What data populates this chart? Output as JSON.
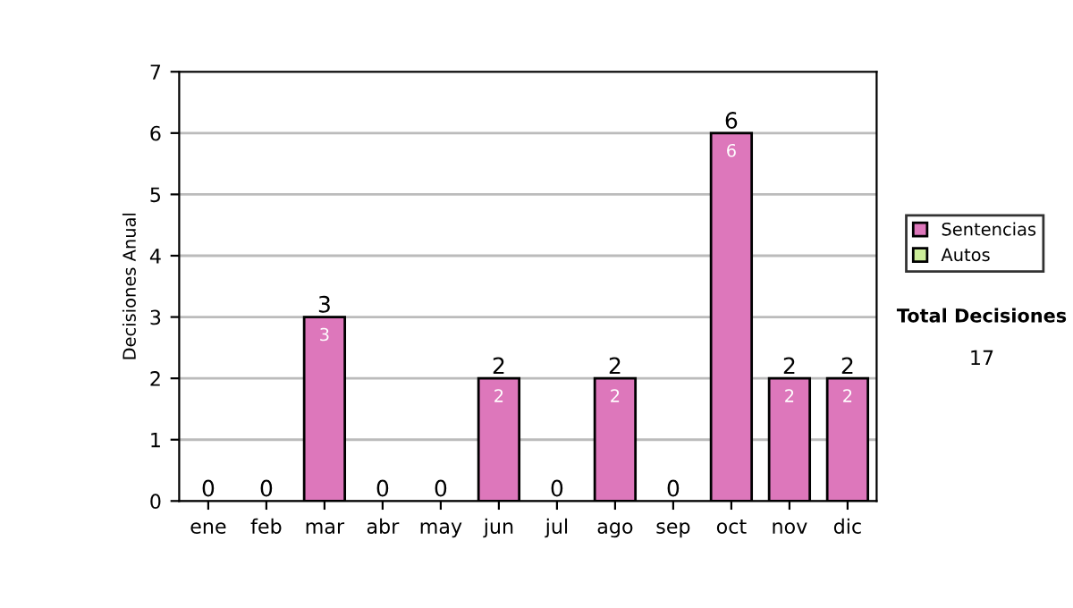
{
  "chart_data": {
    "type": "bar",
    "ylabel": "Decisiones Anual",
    "categories": [
      "ene",
      "feb",
      "mar",
      "abr",
      "may",
      "jun",
      "jul",
      "ago",
      "sep",
      "oct",
      "nov",
      "dic"
    ],
    "series": [
      {
        "name": "Sentencias",
        "color": "#dd77bb",
        "values": [
          0,
          0,
          3,
          0,
          0,
          2,
          0,
          2,
          0,
          6,
          2,
          2
        ],
        "value_labels": [
          null,
          null,
          "3",
          null,
          null,
          "2",
          null,
          "2",
          null,
          "6",
          "2",
          "2"
        ]
      },
      {
        "name": "Autos",
        "color": "#ccee99",
        "values": [
          0,
          0,
          0,
          0,
          0,
          0,
          0,
          0,
          0,
          0,
          0,
          0
        ]
      }
    ],
    "stacked": true,
    "totals": [
      "0",
      "0",
      "3",
      "0",
      "0",
      "2",
      "0",
      "2",
      "0",
      "6",
      "2",
      "2"
    ],
    "ylim": [
      0,
      7
    ],
    "yticks": [
      0,
      1,
      2,
      3,
      4,
      5,
      6,
      7
    ],
    "grid": "y",
    "legend": "right",
    "annotations": [
      "Total Decisiones",
      "17"
    ]
  }
}
